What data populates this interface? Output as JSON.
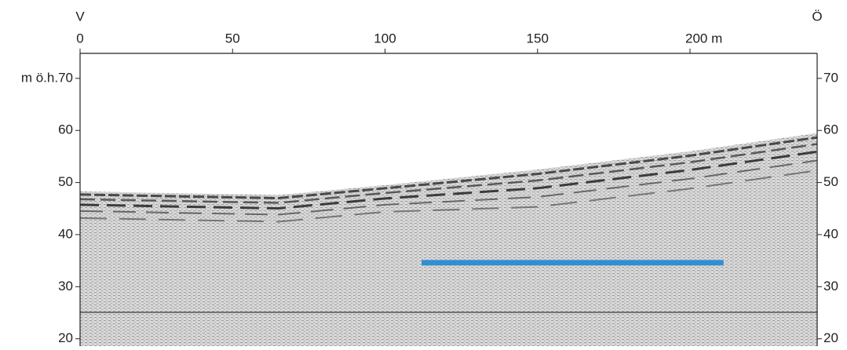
{
  "chart_data": {
    "type": "profile",
    "left_label": "V",
    "right_label": "Ö",
    "xlim": [
      0,
      241.7
    ],
    "xticks": [
      0,
      50,
      100,
      150,
      {
        "value": 200,
        "label": "200 m"
      }
    ],
    "ylim": [
      18.6,
      74.8
    ],
    "yticks": [
      20,
      30,
      40,
      50,
      60,
      {
        "value": 70,
        "label": "m ö.h.70"
      }
    ],
    "y2lim": [
      18.6,
      74.8
    ],
    "y2ticks": [
      20,
      30,
      40,
      50,
      60,
      70
    ],
    "surface": {
      "x": [
        0,
        65,
        100,
        150,
        200,
        241.7
      ],
      "values": [
        48.3,
        47.6,
        49.5,
        52.5,
        56,
        59.5
      ]
    },
    "series": [
      {
        "color": "#2f8fd0",
        "x": [
          112,
          211
        ],
        "values": [
          34.6,
          34.6
        ]
      }
    ]
  }
}
